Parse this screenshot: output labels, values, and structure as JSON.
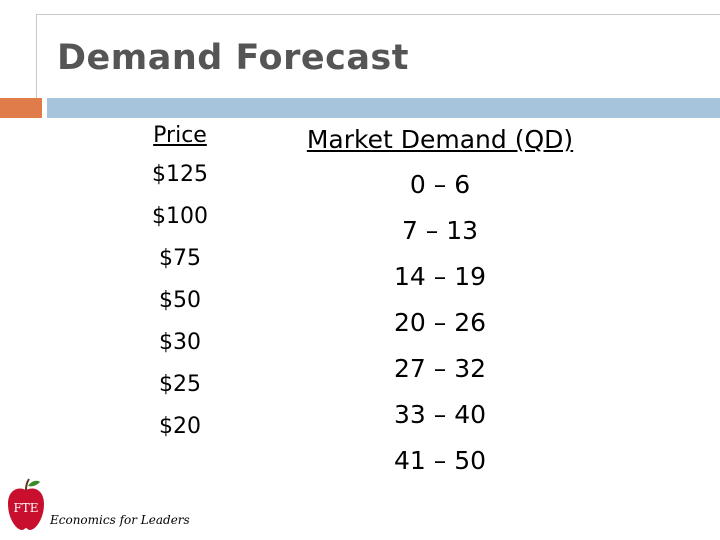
{
  "slide": {
    "title": "Demand Forecast",
    "colors": {
      "accent_orange": "#e07b4a",
      "accent_blue": "#a7c4dd",
      "title_gray": "#555555",
      "apple_red": "#c8102e"
    }
  },
  "table": {
    "headers": {
      "price": "Price",
      "demand": "Market Demand (QD)"
    },
    "rows": [
      {
        "price": "$125",
        "demand": "0 – 6"
      },
      {
        "price": "$100",
        "demand": "7 – 13"
      },
      {
        "price": "$75",
        "demand": "14 – 19"
      },
      {
        "price": "$50",
        "demand": "20 – 26"
      },
      {
        "price": "$30",
        "demand": "27 – 32"
      },
      {
        "price": "$25",
        "demand": "33 – 40"
      },
      {
        "price": "$20",
        "demand": "41 – 50"
      }
    ]
  },
  "footer": {
    "logo_icon": "apple-logo-icon",
    "logo_text": "FTE",
    "caption": "Economics for Leaders"
  }
}
